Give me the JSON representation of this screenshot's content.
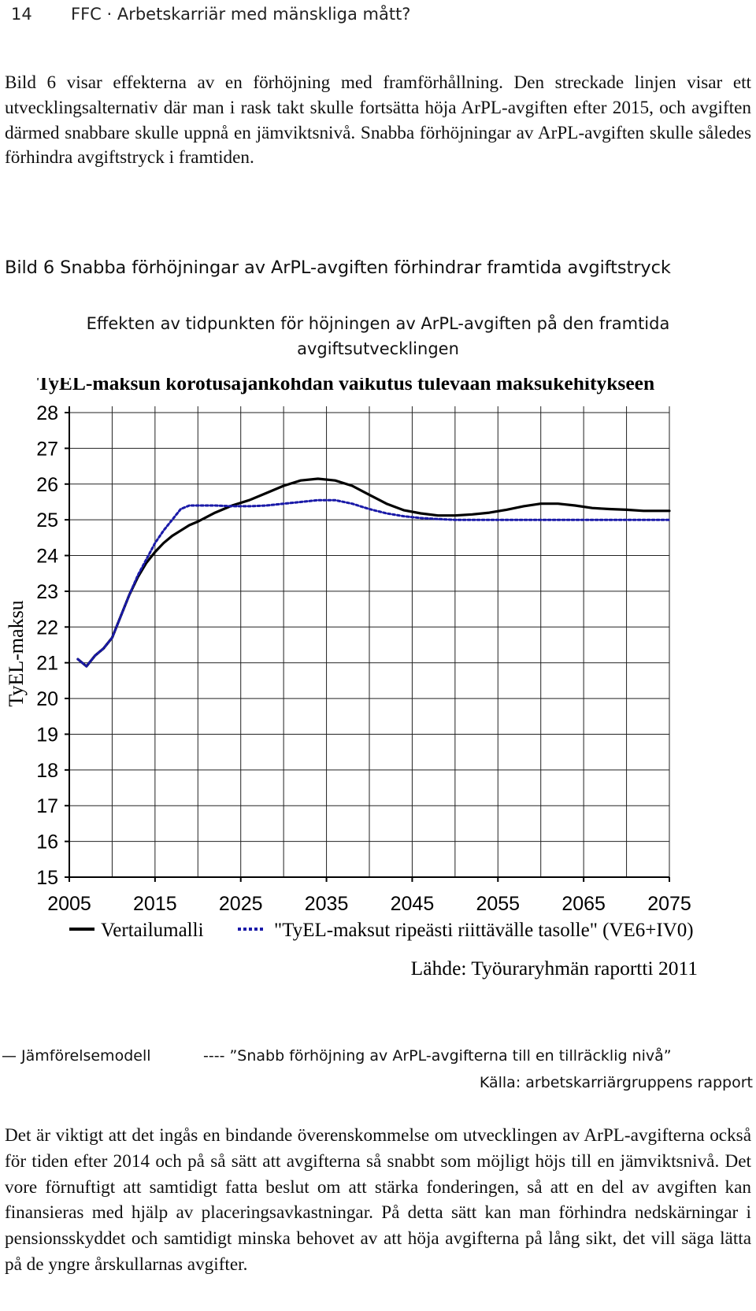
{
  "header": {
    "page_number": "14",
    "running_title": "FFC · Arbetskarriär med mänskliga mått?"
  },
  "paragraph_1": "Bild 6 visar effekterna av en förhöjning med framförhållning. Den streckade linjen visar ett utvecklingsalternativ där man i rask takt skulle fortsätta höja ArPL-avgiften efter 2015, och avgiften därmed snabbare skulle uppnå en jämviktsnivå. Snabba förhöjningar av ArPL-avgiften skulle således förhindra avgiftstryck i framtiden.",
  "figure": {
    "caption": "Bild 6 Snabba förhöjningar av ArPL-avgiften förhindrar framtida avgiftstryck",
    "heading_line1": "Effekten av tidpunkten för höjningen av ArPL-avgiften på den framtida",
    "heading_line2": "avgiftsutvecklingen"
  },
  "chart_data": {
    "type": "line",
    "title": "TyEL-maksun korotusajankohdan vaikutus tulevaan maksukehitykseen",
    "ylabel": "TyEL-maksu",
    "xlabel": "",
    "xlim": [
      2005,
      2075
    ],
    "ylim": [
      15,
      28
    ],
    "x_ticks": [
      2005,
      2015,
      2025,
      2035,
      2045,
      2055,
      2065,
      2075
    ],
    "y_ticks": [
      15,
      16,
      17,
      18,
      19,
      20,
      21,
      22,
      23,
      24,
      25,
      26,
      27,
      28
    ],
    "grid": true,
    "legend_position": "bottom",
    "source": "Lähde: Työuraryhmän raportti 2011",
    "series": [
      {
        "name": "Vertailumalli",
        "style": "solid",
        "color": "#000000",
        "x": [
          2006,
          2007,
          2008,
          2009,
          2010,
          2011,
          2012,
          2013,
          2014,
          2015,
          2016,
          2017,
          2018,
          2019,
          2020,
          2022,
          2024,
          2026,
          2028,
          2030,
          2032,
          2034,
          2036,
          2038,
          2040,
          2042,
          2044,
          2046,
          2048,
          2050,
          2052,
          2054,
          2056,
          2058,
          2060,
          2062,
          2064,
          2066,
          2068,
          2070,
          2072,
          2075
        ],
        "y": [
          21.1,
          20.9,
          21.2,
          21.4,
          21.7,
          22.3,
          22.9,
          23.4,
          23.8,
          24.1,
          24.35,
          24.55,
          24.7,
          24.85,
          24.95,
          25.2,
          25.4,
          25.55,
          25.75,
          25.95,
          26.1,
          26.15,
          26.1,
          25.95,
          25.7,
          25.45,
          25.27,
          25.18,
          25.12,
          25.12,
          25.15,
          25.2,
          25.28,
          25.38,
          25.45,
          25.45,
          25.4,
          25.33,
          25.3,
          25.28,
          25.25,
          25.25
        ]
      },
      {
        "name": "\"TyEL-maksut ripeästi riittävälle tasolle\" (VE6+IV0)",
        "style": "dotted",
        "color": "#1a1aa8",
        "x": [
          2006,
          2007,
          2008,
          2009,
          2010,
          2011,
          2012,
          2013,
          2014,
          2015,
          2016,
          2017,
          2018,
          2019,
          2020,
          2022,
          2024,
          2026,
          2028,
          2030,
          2032,
          2034,
          2036,
          2038,
          2040,
          2042,
          2044,
          2046,
          2048,
          2050,
          2055,
          2060,
          2065,
          2070,
          2075
        ],
        "y": [
          21.1,
          20.9,
          21.2,
          21.4,
          21.7,
          22.3,
          22.9,
          23.45,
          23.9,
          24.35,
          24.7,
          25.0,
          25.3,
          25.4,
          25.4,
          25.4,
          25.38,
          25.38,
          25.4,
          25.45,
          25.5,
          25.55,
          25.55,
          25.45,
          25.3,
          25.18,
          25.1,
          25.05,
          25.02,
          25.0,
          25.0,
          25.0,
          25.0,
          25.0,
          25.0
        ]
      }
    ]
  },
  "legend_swedish": {
    "solid_label": "— Jämförelsemodell",
    "dashed_label": "---- ”Snabb förhöjning av ArPL-avgifterna till en tillräcklig nivå”"
  },
  "source_swedish": "Källa: arbetskarriärgruppens rapport",
  "paragraph_2": "Det är viktigt att det ingås en bindande överenskommelse om utvecklingen av ArPL-avgifterna också för tiden efter 2014 och på så sätt att avgifterna så snabbt som möjligt höjs till en jämviktsnivå. Det vore förnuftigt att samtidigt fatta beslut om att stärka fonderingen, så att en del av avgiften kan finansieras med hjälp av placeringsavkastningar. På detta sätt kan man förhindra nedskärningar i pensionsskyddet och samtidigt minska behovet av att höja avgifterna på lång sikt, det vill säga lätta på de yngre årskullarnas avgifter."
}
